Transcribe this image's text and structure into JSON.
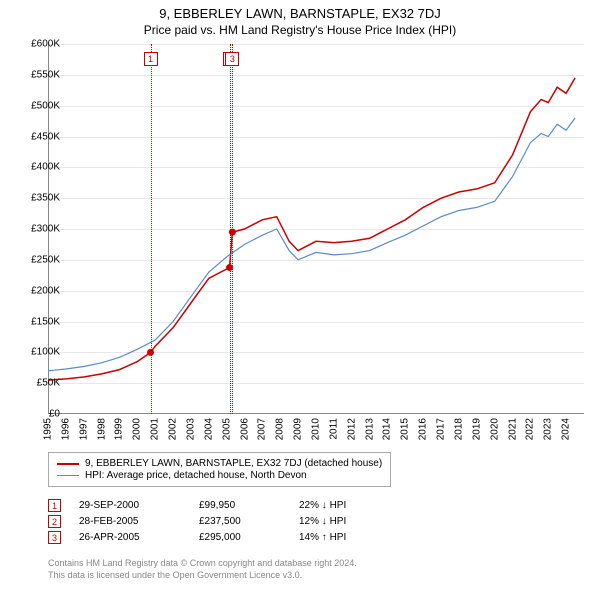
{
  "title": "9, EBBERLEY LAWN, BARNSTAPLE, EX32 7DJ",
  "subtitle": "Price paid vs. HM Land Registry's House Price Index (HPI)",
  "chart": {
    "type": "line",
    "background_color": "#ffffff",
    "grid_color": "#e8e8e8",
    "axis_color": "#888888",
    "ylim": [
      0,
      600000
    ],
    "ytick_step": 50000,
    "yticks": [
      "£0",
      "£50K",
      "£100K",
      "£150K",
      "£200K",
      "£250K",
      "£300K",
      "£350K",
      "£400K",
      "£450K",
      "£500K",
      "£550K",
      "£600K"
    ],
    "xlim": [
      1995,
      2025
    ],
    "xticks": [
      "1995",
      "1996",
      "1997",
      "1998",
      "1999",
      "2000",
      "2001",
      "2002",
      "2003",
      "2004",
      "2005",
      "2006",
      "2007",
      "2008",
      "2009",
      "2010",
      "2011",
      "2012",
      "2013",
      "2014",
      "2015",
      "2016",
      "2017",
      "2018",
      "2019",
      "2020",
      "2021",
      "2022",
      "2023",
      "2024"
    ],
    "series": [
      {
        "name": "property",
        "label": "9, EBBERLEY LAWN, BARNSTAPLE, EX32 7DJ (detached house)",
        "color": "#cc0000",
        "line_width": 1.5,
        "points": [
          [
            1995,
            55000
          ],
          [
            1996,
            57000
          ],
          [
            1997,
            60000
          ],
          [
            1998,
            65000
          ],
          [
            1999,
            72000
          ],
          [
            2000,
            85000
          ],
          [
            2000.74,
            99950
          ],
          [
            2001,
            110000
          ],
          [
            2002,
            140000
          ],
          [
            2003,
            180000
          ],
          [
            2004,
            220000
          ],
          [
            2005.16,
            237500
          ],
          [
            2005.32,
            295000
          ],
          [
            2006,
            300000
          ],
          [
            2007,
            315000
          ],
          [
            2007.8,
            320000
          ],
          [
            2008.5,
            280000
          ],
          [
            2009,
            265000
          ],
          [
            2010,
            280000
          ],
          [
            2011,
            278000
          ],
          [
            2012,
            280000
          ],
          [
            2013,
            285000
          ],
          [
            2014,
            300000
          ],
          [
            2015,
            315000
          ],
          [
            2016,
            335000
          ],
          [
            2017,
            350000
          ],
          [
            2018,
            360000
          ],
          [
            2019,
            365000
          ],
          [
            2020,
            375000
          ],
          [
            2021,
            420000
          ],
          [
            2022,
            490000
          ],
          [
            2022.6,
            510000
          ],
          [
            2023,
            505000
          ],
          [
            2023.5,
            530000
          ],
          [
            2024,
            520000
          ],
          [
            2024.5,
            545000
          ]
        ]
      },
      {
        "name": "hpi",
        "label": "HPI: Average price, detached house, North Devon",
        "color": "#5b8bc9",
        "line_width": 1.2,
        "points": [
          [
            1995,
            70000
          ],
          [
            1996,
            73000
          ],
          [
            1997,
            77000
          ],
          [
            1998,
            83000
          ],
          [
            1999,
            92000
          ],
          [
            2000,
            105000
          ],
          [
            2001,
            120000
          ],
          [
            2002,
            150000
          ],
          [
            2003,
            190000
          ],
          [
            2004,
            230000
          ],
          [
            2005,
            255000
          ],
          [
            2006,
            275000
          ],
          [
            2007,
            290000
          ],
          [
            2007.8,
            300000
          ],
          [
            2008.5,
            265000
          ],
          [
            2009,
            250000
          ],
          [
            2010,
            262000
          ],
          [
            2011,
            258000
          ],
          [
            2012,
            260000
          ],
          [
            2013,
            265000
          ],
          [
            2014,
            278000
          ],
          [
            2015,
            290000
          ],
          [
            2016,
            305000
          ],
          [
            2017,
            320000
          ],
          [
            2018,
            330000
          ],
          [
            2019,
            335000
          ],
          [
            2020,
            345000
          ],
          [
            2021,
            385000
          ],
          [
            2022,
            440000
          ],
          [
            2022.6,
            455000
          ],
          [
            2023,
            450000
          ],
          [
            2023.5,
            470000
          ],
          [
            2024,
            460000
          ],
          [
            2024.5,
            480000
          ]
        ]
      }
    ],
    "event_markers": [
      {
        "n": "1",
        "x": 2000.74,
        "y": 99950,
        "line_color": "#cc0000",
        "marker_color": "#cc0000"
      },
      {
        "n": "2",
        "x": 2005.16,
        "y": 237500,
        "line_color": "#cc0000",
        "marker_color": "#cc0000"
      },
      {
        "n": "3",
        "x": 2005.32,
        "y": 295000,
        "line_color": "#cc0000",
        "marker_color": "#cc0000"
      }
    ]
  },
  "legend": {
    "items": [
      {
        "color": "#cc0000",
        "width": 2,
        "label": "9, EBBERLEY LAWN, BARNSTAPLE, EX32 7DJ (detached house)"
      },
      {
        "color": "#5b8bc9",
        "width": 1.2,
        "label": "HPI: Average price, detached house, North Devon"
      }
    ]
  },
  "events_table": [
    {
      "n": "1",
      "date": "29-SEP-2000",
      "price": "£99,950",
      "pct": "22% ↓ HPI"
    },
    {
      "n": "2",
      "date": "28-FEB-2005",
      "price": "£237,500",
      "pct": "12% ↓ HPI"
    },
    {
      "n": "3",
      "date": "26-APR-2005",
      "price": "£295,000",
      "pct": "14% ↑ HPI"
    }
  ],
  "footnote_l1": "Contains HM Land Registry data © Crown copyright and database right 2024.",
  "footnote_l2": "This data is licensed under the Open Government Licence v3.0."
}
